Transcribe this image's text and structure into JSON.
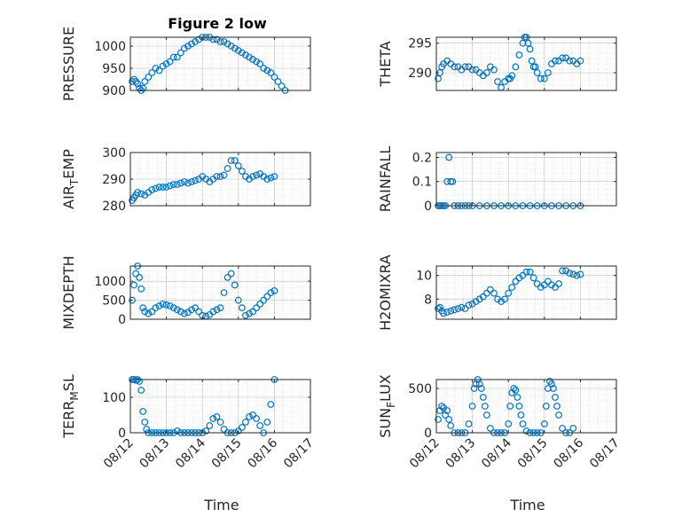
{
  "chart_data": {
    "figure_title": "Figure 2 low",
    "xlabel": "Time",
    "x_ticks": [
      "08/12",
      "08/13",
      "08/14",
      "08/15",
      "08/16",
      "08/17"
    ],
    "marker_color": "#0072BD",
    "panels": [
      {
        "type": "scatter",
        "name": "PRESSURE",
        "ylabel": "PRESSURE",
        "ylabel_sub": [],
        "ylim": [
          900,
          1020
        ],
        "yticks": [
          900,
          950,
          1000
        ],
        "x": [
          0.05,
          0.1,
          0.15,
          0.2,
          0.25,
          0.3,
          0.35,
          0.4,
          0.5,
          0.6,
          0.7,
          0.8,
          0.9,
          1.0,
          1.1,
          1.2,
          1.3,
          1.4,
          1.5,
          1.6,
          1.7,
          1.8,
          1.9,
          2.0,
          2.1,
          2.2,
          2.3,
          2.4,
          2.5,
          2.6,
          2.7,
          2.8,
          2.9,
          3.0,
          3.1,
          3.2,
          3.3,
          3.4,
          3.5,
          3.6,
          3.7,
          3.8,
          3.9,
          4.0,
          4.1,
          4.2,
          4.3
        ],
        "y": [
          920,
          925,
          920,
          915,
          905,
          900,
          905,
          920,
          930,
          940,
          950,
          945,
          955,
          960,
          965,
          975,
          975,
          985,
          995,
          1000,
          1005,
          1010,
          1015,
          1020,
          1020,
          1020,
          1015,
          1015,
          1010,
          1010,
          1005,
          1000,
          995,
          990,
          985,
          980,
          975,
          970,
          965,
          960,
          950,
          945,
          940,
          930,
          920,
          910,
          900
        ]
      },
      {
        "type": "scatter",
        "name": "THETA",
        "ylabel": "THETA",
        "ylabel_sub": [],
        "ylim": [
          287,
          296
        ],
        "yticks": [
          290,
          295
        ],
        "x": [
          0.05,
          0.1,
          0.15,
          0.2,
          0.3,
          0.4,
          0.5,
          0.6,
          0.7,
          0.8,
          0.9,
          1.0,
          1.1,
          1.2,
          1.3,
          1.4,
          1.5,
          1.6,
          1.7,
          1.8,
          1.9,
          2.0,
          2.05,
          2.1,
          2.2,
          2.3,
          2.4,
          2.45,
          2.5,
          2.55,
          2.6,
          2.65,
          2.7,
          2.75,
          2.8,
          2.9,
          3.0,
          3.1,
          3.2,
          3.3,
          3.4,
          3.5,
          3.6,
          3.7,
          3.8,
          3.9,
          4.0
        ],
        "y": [
          289,
          290,
          291,
          291.5,
          292,
          291.5,
          291,
          291,
          290.5,
          291,
          291,
          290.5,
          290.5,
          290,
          289.5,
          290,
          291,
          290.5,
          288.5,
          287.5,
          288.5,
          289,
          289,
          289.5,
          291,
          293,
          295,
          296,
          296,
          295,
          294,
          292,
          291,
          291,
          290,
          289,
          289,
          290,
          291.5,
          292,
          292,
          292.5,
          292.5,
          292,
          292,
          291.5,
          292
        ]
      },
      {
        "type": "scatter",
        "name": "AIR_TEMP",
        "ylabel": "AIR",
        "ylabel_sub": [
          "T",
          "EMP"
        ],
        "ylim": [
          280,
          300
        ],
        "yticks": [
          280,
          290,
          300
        ],
        "x": [
          0.05,
          0.1,
          0.15,
          0.2,
          0.3,
          0.4,
          0.5,
          0.6,
          0.7,
          0.8,
          0.9,
          1.0,
          1.1,
          1.2,
          1.3,
          1.4,
          1.5,
          1.6,
          1.7,
          1.8,
          1.9,
          2.0,
          2.1,
          2.2,
          2.3,
          2.4,
          2.5,
          2.6,
          2.7,
          2.8,
          2.9,
          3.0,
          3.1,
          3.2,
          3.3,
          3.4,
          3.5,
          3.6,
          3.7,
          3.8,
          3.9,
          4.0
        ],
        "y": [
          282,
          283,
          284,
          285,
          284.5,
          284,
          285,
          286,
          286.5,
          287,
          287,
          287,
          287.5,
          288,
          288,
          288.5,
          289,
          288.5,
          289,
          289.5,
          290,
          291,
          290,
          289,
          290,
          291,
          291,
          291.5,
          294,
          297,
          297,
          295,
          293,
          291,
          290,
          291,
          291.5,
          292,
          291,
          290,
          290.5,
          291
        ]
      },
      {
        "type": "scatter",
        "name": "RAINFALL",
        "ylabel": "RAINFALL",
        "ylabel_sub": [],
        "ylim": [
          0,
          0.22
        ],
        "yticks": [
          0,
          0.1,
          0.2
        ],
        "x": [
          0.05,
          0.1,
          0.15,
          0.2,
          0.25,
          0.3,
          0.35,
          0.4,
          0.45,
          0.5,
          0.6,
          0.7,
          0.8,
          0.9,
          1.0,
          1.2,
          1.4,
          1.6,
          1.8,
          2.0,
          2.2,
          2.4,
          2.6,
          2.8,
          3.0,
          3.2,
          3.4,
          3.6,
          3.8,
          4.0
        ],
        "y": [
          0,
          0,
          0,
          0,
          0,
          0.1,
          0.2,
          0.1,
          0.1,
          0,
          0,
          0,
          0,
          0,
          0,
          0,
          0,
          0,
          0,
          0,
          0,
          0,
          0,
          0,
          0,
          0,
          0,
          0,
          0,
          0
        ]
      },
      {
        "type": "scatter",
        "name": "MIXDEPTH",
        "ylabel": "MIXDEPTH",
        "ylabel_sub": [],
        "ylim": [
          0,
          1400
        ],
        "yticks": [
          0,
          500,
          1000
        ],
        "x": [
          0.05,
          0.1,
          0.15,
          0.2,
          0.25,
          0.3,
          0.35,
          0.4,
          0.5,
          0.6,
          0.7,
          0.8,
          0.9,
          1.0,
          1.1,
          1.2,
          1.3,
          1.4,
          1.5,
          1.6,
          1.7,
          1.8,
          1.9,
          2.0,
          2.1,
          2.2,
          2.3,
          2.4,
          2.5,
          2.6,
          2.7,
          2.8,
          2.9,
          3.0,
          3.1,
          3.2,
          3.3,
          3.4,
          3.5,
          3.6,
          3.7,
          3.8,
          3.9,
          4.0
        ],
        "y": [
          500,
          900,
          1200,
          1400,
          1100,
          800,
          300,
          200,
          150,
          200,
          300,
          350,
          400,
          380,
          350,
          300,
          250,
          200,
          150,
          180,
          250,
          300,
          200,
          100,
          80,
          120,
          200,
          250,
          300,
          700,
          1100,
          1200,
          900,
          500,
          300,
          100,
          150,
          200,
          300,
          400,
          500,
          600,
          700,
          750
        ]
      },
      {
        "type": "scatter",
        "name": "H2OMIXRA",
        "ylabel": "H2OMIXRA",
        "ylabel_sub": [],
        "ylim": [
          6.3,
          10.8
        ],
        "yticks": [
          8,
          10
        ],
        "x": [
          0.05,
          0.1,
          0.15,
          0.2,
          0.3,
          0.4,
          0.5,
          0.6,
          0.7,
          0.8,
          0.9,
          1.0,
          1.1,
          1.2,
          1.3,
          1.4,
          1.5,
          1.6,
          1.7,
          1.8,
          1.9,
          2.0,
          2.1,
          2.2,
          2.3,
          2.4,
          2.5,
          2.6,
          2.7,
          2.8,
          2.9,
          3.0,
          3.1,
          3.2,
          3.3,
          3.4,
          3.5,
          3.6,
          3.7,
          3.8,
          3.9,
          4.0
        ],
        "y": [
          7.2,
          7.3,
          7.0,
          6.8,
          6.9,
          7.0,
          7.1,
          7.2,
          7.3,
          7.2,
          7.5,
          7.6,
          7.8,
          8.0,
          8.2,
          8.5,
          8.8,
          8.5,
          8.0,
          7.8,
          8.0,
          8.5,
          9.0,
          9.5,
          9.8,
          10.0,
          10.3,
          10.3,
          9.8,
          9.3,
          9.0,
          9.2,
          9.5,
          9.2,
          9.0,
          9.3,
          10.4,
          10.4,
          10.2,
          10.1,
          10.0,
          10.1
        ]
      },
      {
        "type": "scatter",
        "name": "TERR_MSL",
        "ylabel": "TERR",
        "ylabel_sub": [
          "M",
          "SL"
        ],
        "ylim": [
          0,
          150
        ],
        "yticks": [
          0,
          100
        ],
        "x": [
          0.05,
          0.1,
          0.15,
          0.2,
          0.25,
          0.3,
          0.35,
          0.4,
          0.45,
          0.5,
          0.6,
          0.7,
          0.8,
          0.9,
          1.0,
          1.1,
          1.2,
          1.3,
          1.4,
          1.5,
          1.6,
          1.7,
          1.8,
          1.9,
          2.0,
          2.1,
          2.2,
          2.3,
          2.4,
          2.5,
          2.6,
          2.7,
          2.8,
          2.9,
          3.0,
          3.1,
          3.2,
          3.3,
          3.4,
          3.5,
          3.6,
          3.7,
          3.8,
          3.9,
          4.0
        ],
        "y": [
          150,
          150,
          148,
          150,
          145,
          120,
          60,
          30,
          10,
          0,
          0,
          0,
          0,
          0,
          0,
          0,
          0,
          5,
          0,
          0,
          0,
          0,
          0,
          0,
          0,
          5,
          20,
          40,
          45,
          30,
          10,
          0,
          0,
          0,
          5,
          15,
          30,
          45,
          50,
          40,
          20,
          0,
          30,
          80,
          150
        ]
      },
      {
        "type": "scatter",
        "name": "SUN_FLUX",
        "ylabel": "SUN",
        "ylabel_sub": [
          "F",
          "LUX"
        ],
        "ylim": [
          0,
          600
        ],
        "yticks": [
          0,
          500
        ],
        "x": [
          0.05,
          0.1,
          0.15,
          0.2,
          0.25,
          0.3,
          0.35,
          0.4,
          0.5,
          0.6,
          0.7,
          0.8,
          0.9,
          1.0,
          1.05,
          1.1,
          1.15,
          1.2,
          1.25,
          1.3,
          1.35,
          1.4,
          1.5,
          1.6,
          1.7,
          1.8,
          1.9,
          2.0,
          2.05,
          2.1,
          2.15,
          2.2,
          2.25,
          2.3,
          2.35,
          2.4,
          2.5,
          2.6,
          2.7,
          2.8,
          2.9,
          3.0,
          3.05,
          3.1,
          3.15,
          3.2,
          3.25,
          3.3,
          3.35,
          3.4,
          3.5,
          3.6,
          3.7,
          3.8
        ],
        "y": [
          150,
          250,
          300,
          280,
          200,
          250,
          150,
          80,
          0,
          0,
          0,
          0,
          100,
          300,
          500,
          550,
          600,
          550,
          500,
          400,
          300,
          200,
          50,
          0,
          0,
          0,
          0,
          100,
          300,
          450,
          500,
          480,
          400,
          300,
          200,
          100,
          20,
          0,
          0,
          0,
          0,
          100,
          300,
          500,
          580,
          550,
          500,
          400,
          300,
          200,
          50,
          0,
          0,
          50
        ]
      }
    ]
  }
}
